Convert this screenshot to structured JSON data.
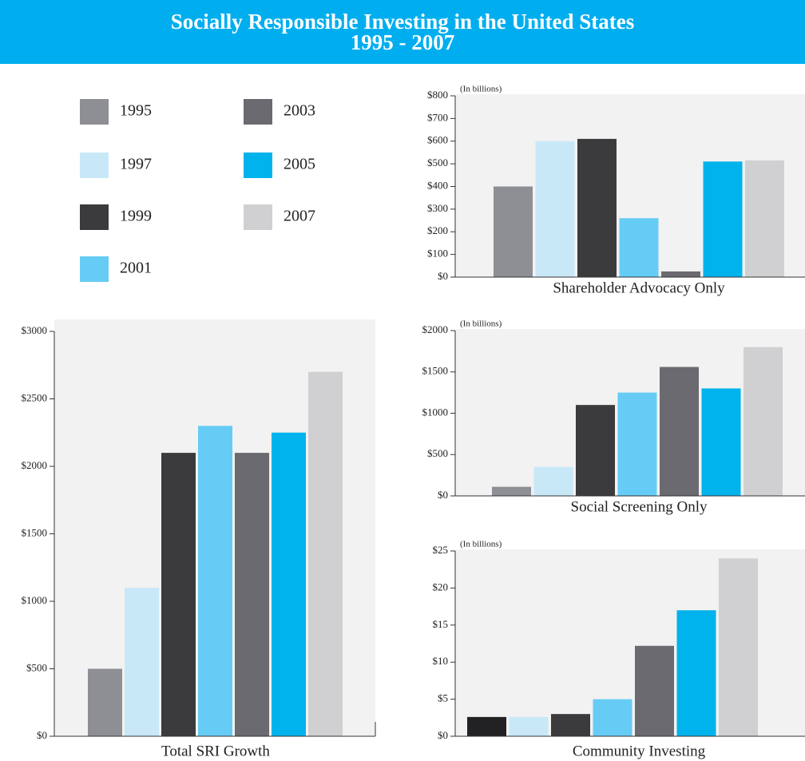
{
  "title": [
    "Socially Responsible Investing in the United States",
    "1995 - 2007"
  ],
  "legend": [
    {
      "name": "1995",
      "color": "#8e8f94"
    },
    {
      "name": "1997",
      "color": "#c8e8f8"
    },
    {
      "name": "1999",
      "color": "#3b3b3e"
    },
    {
      "name": "2001",
      "color": "#66ccf5"
    },
    {
      "name": "2003",
      "color": "#6a6a70"
    },
    {
      "name": "2005",
      "color": "#00b3ec"
    },
    {
      "name": "2007",
      "color": "#d0d0d3"
    }
  ],
  "chart_data": [
    {
      "type": "bar",
      "title": "Total SRI Growth",
      "values": [
        500,
        1100,
        2100,
        2300,
        2100,
        2250,
        2700
      ],
      "colors": [
        "#8e8f94",
        "#c8e8f8",
        "#3b3b3e",
        "#66ccf5",
        "#6a6a70",
        "#00b3ec",
        "#d0d0d3"
      ],
      "ylim": [
        0,
        3000
      ],
      "yticks": [
        {
          "value": 0,
          "label": "$0"
        },
        {
          "value": 500,
          "label": "$500"
        },
        {
          "value": 1000,
          "label": "$1000"
        },
        {
          "value": 1500,
          "label": "$1500"
        },
        {
          "value": 2000,
          "label": "$2000"
        },
        {
          "value": 2500,
          "label": "$2500"
        },
        {
          "value": 3000,
          "label": "$3000"
        }
      ]
    },
    {
      "type": "bar",
      "title": "Shareholder Advocacy Only",
      "unit_note": "(In billions)",
      "values": [
        400,
        600,
        610,
        260,
        25,
        510,
        515
      ],
      "colors": [
        "#8e8f94",
        "#c8e8f8",
        "#3b3b3e",
        "#66ccf5",
        "#6a6a70",
        "#00b3ec",
        "#d0d0d3"
      ],
      "ylim": [
        0,
        800
      ],
      "yticks": [
        {
          "value": 0,
          "label": "$0"
        },
        {
          "value": 100,
          "label": "$100"
        },
        {
          "value": 200,
          "label": "$200"
        },
        {
          "value": 300,
          "label": "$300"
        },
        {
          "value": 400,
          "label": "$400"
        },
        {
          "value": 500,
          "label": "$500"
        },
        {
          "value": 600,
          "label": "$600"
        },
        {
          "value": 700,
          "label": "$700"
        },
        {
          "value": 800,
          "label": "$800"
        }
      ]
    },
    {
      "type": "bar",
      "title": "Social Screening Only",
      "unit_note": "(In billions)",
      "values": [
        110,
        350,
        1100,
        1250,
        1560,
        1300,
        1800
      ],
      "colors": [
        "#8e8f94",
        "#c8e8f8",
        "#3b3b3e",
        "#66ccf5",
        "#6a6a70",
        "#00b3ec",
        "#d0d0d3"
      ],
      "ylim": [
        0,
        2000
      ],
      "yticks": [
        {
          "value": 0,
          "label": "$0"
        },
        {
          "value": 500,
          "label": "$500"
        },
        {
          "value": 1000,
          "label": "$1000"
        },
        {
          "value": 1500,
          "label": "$1500"
        },
        {
          "value": 2000,
          "label": "$2000"
        }
      ]
    },
    {
      "type": "bar",
      "title": "Community Investing",
      "unit_note": "(In billions)",
      "values": [
        2.6,
        2.6,
        3,
        5,
        12.2,
        17,
        24
      ],
      "colors": [
        "#222224",
        "#c8e8f8",
        "#3b3b3e",
        "#66ccf5",
        "#6a6a70",
        "#00b3ec",
        "#d0d0d3"
      ],
      "ylim": [
        0,
        25
      ],
      "yticks": [
        {
          "value": 0,
          "label": "$0"
        },
        {
          "value": 5,
          "label": "$5"
        },
        {
          "value": 10,
          "label": "$10"
        },
        {
          "value": 15,
          "label": "$15"
        },
        {
          "value": 20,
          "label": "$20"
        },
        {
          "value": 25,
          "label": "$25"
        }
      ]
    }
  ]
}
